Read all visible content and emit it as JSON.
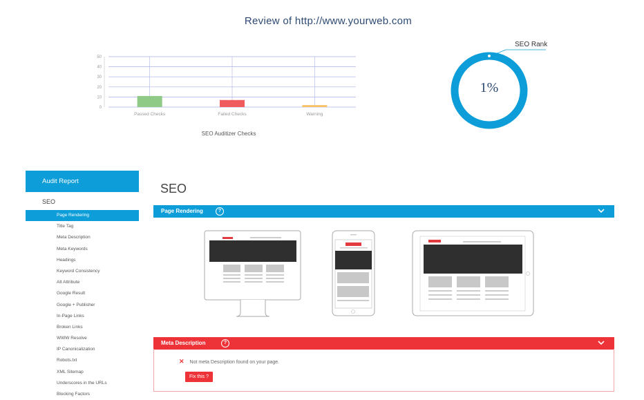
{
  "header": {
    "title": "Review of http://www.yourweb.com"
  },
  "chart_data": {
    "type": "bar",
    "categories": [
      "Passed Checks",
      "Failed Checks",
      "Warning"
    ],
    "values": [
      11,
      7,
      2
    ],
    "colors": [
      "#8fcb87",
      "#f05b5d",
      "#f7c46c"
    ],
    "xlabel": "SEO Auditizer Checks",
    "ylabel": "",
    "ylim": [
      0,
      50
    ],
    "yticks": [
      0,
      10,
      20,
      30,
      40,
      50
    ],
    "grid": true
  },
  "seo_rank": {
    "label": "SEO Rank",
    "value_text": "1%",
    "percent": 1,
    "color": "#0d9ed9"
  },
  "sidebar": {
    "header": "Audit Report",
    "section": "SEO",
    "items": [
      {
        "label": "Page Rendering",
        "active": true
      },
      {
        "label": "Title Tag"
      },
      {
        "label": "Meta Description"
      },
      {
        "label": "Meta Keywords"
      },
      {
        "label": "Headings"
      },
      {
        "label": "Keyword Consistency"
      },
      {
        "label": "Alt Attribute"
      },
      {
        "label": "Google Result"
      },
      {
        "label": "Google + Publisher"
      },
      {
        "label": "In-Page Links"
      },
      {
        "label": "Broken Links"
      },
      {
        "label": "WWW Resolve"
      },
      {
        "label": "IP Canonicalization"
      },
      {
        "label": "Robots.txt"
      },
      {
        "label": "XML Sitemap"
      },
      {
        "label": "Underscores in the URLs"
      },
      {
        "label": "Blocking Factors"
      }
    ]
  },
  "main": {
    "title": "SEO",
    "page_rendering": {
      "title": "Page Rendering",
      "icons": [
        "help-icon",
        "chevron-down-icon"
      ]
    },
    "meta_description": {
      "title": "Meta Description",
      "error_text": "Not meta Description found on your page.",
      "fix_label": "Fix this ?",
      "icons": [
        "help-icon",
        "chevron-down-icon",
        "x-icon"
      ]
    }
  },
  "colors": {
    "accent": "#0d9ed9",
    "error": "#ee3338"
  }
}
